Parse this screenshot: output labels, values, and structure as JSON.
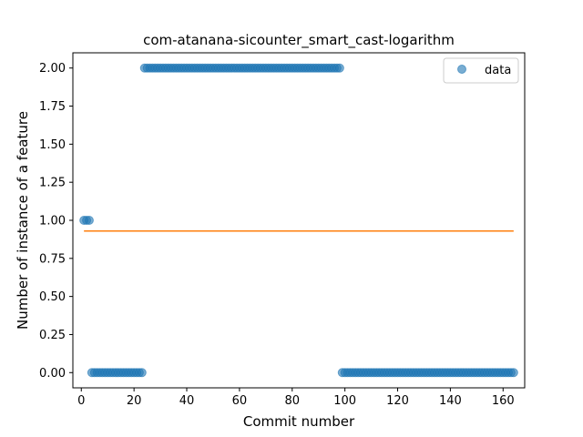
{
  "chart_data": {
    "type": "scatter",
    "title": "com-atanana-sicounter_smart_cast-logarithm",
    "xlabel": "Commit number",
    "ylabel": "Number of instance of a feature",
    "xlim": [
      -3.2,
      168.2
    ],
    "ylim": [
      -0.1,
      2.1
    ],
    "xticks": [
      0,
      20,
      40,
      60,
      80,
      100,
      120,
      140,
      160
    ],
    "yticks": [
      0.0,
      0.25,
      0.5,
      0.75,
      1.0,
      1.25,
      1.5,
      1.75,
      2.0
    ],
    "xtick_labels": [
      "0",
      "20",
      "40",
      "60",
      "80",
      "100",
      "120",
      "140",
      "160"
    ],
    "ytick_labels": [
      "0.00",
      "0.25",
      "0.50",
      "0.75",
      "1.00",
      "1.25",
      "1.50",
      "1.75",
      "2.00"
    ],
    "grid": false,
    "legend": {
      "position": "top-right",
      "entries": [
        "data"
      ]
    },
    "series": [
      {
        "name": "data",
        "kind": "scatter",
        "color": "#1f77b4",
        "segments": [
          {
            "x_start": 1,
            "x_end": 3,
            "y": 1.0
          },
          {
            "x_start": 4,
            "x_end": 23,
            "y": 0.0
          },
          {
            "x_start": 24,
            "x_end": 98,
            "y": 2.0
          },
          {
            "x_start": 99,
            "x_end": 164,
            "y": 0.0
          }
        ]
      },
      {
        "kind": "line",
        "color": "#ff7f0e",
        "x": [
          1,
          164
        ],
        "y": [
          0.93,
          0.93
        ]
      }
    ]
  }
}
